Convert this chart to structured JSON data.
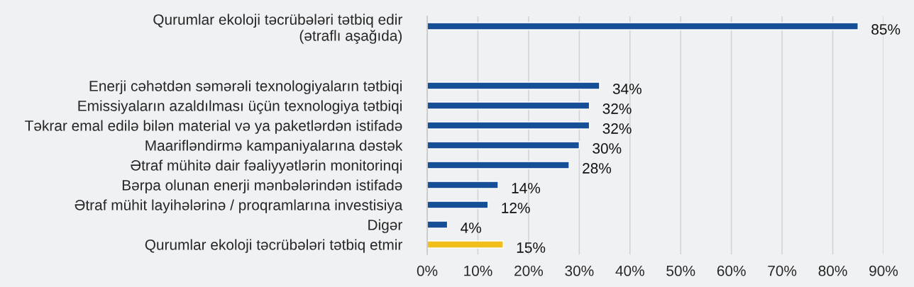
{
  "chart_data": {
    "type": "bar",
    "orientation": "horizontal",
    "categories": [
      "Qurumlar ekoloji təcrübələri tətbiq edir\n(ətraflı aşağıda)",
      null,
      null,
      "Enerji cəhətdən səmərəli texnologiyaların tətbiqi",
      "Emissiyaların azaldılması üçün texnologiya tətbiqi",
      "Təkrar emal edilə bilən material və ya paketlərdən istifadə",
      "Maarifləndirmə kampaniyalarına dəstək",
      "Ətraf mühitə dair fəaliyyətlərin monitorinqi",
      "Bərpa olunan enerji mənbələrindən istifadə",
      "Ətraf mühit layihələrinə / proqramlarına investisiya",
      "Digər",
      "Qurumlar ekoloji təcrübələri tətbiq etmir"
    ],
    "values": [
      85,
      null,
      null,
      34,
      32,
      32,
      30,
      28,
      14,
      12,
      4,
      15
    ],
    "colors": [
      "#154f95",
      "#154f95",
      "#154f95",
      "#154f95",
      "#154f95",
      "#154f95",
      "#154f95",
      "#154f95",
      "#154f95",
      "#154f95",
      "#154f95",
      "#f2bf1a"
    ],
    "value_labels": [
      "85%",
      null,
      null,
      "34%",
      "32%",
      "32%",
      "30%",
      "28%",
      "14%",
      "12%",
      "4%",
      "15%"
    ],
    "xlim": [
      0,
      90
    ],
    "xticks": [
      {
        "value": 0,
        "label": "0%"
      },
      {
        "value": 10,
        "label": "10%"
      },
      {
        "value": 20,
        "label": "20%"
      },
      {
        "value": 30,
        "label": "30%"
      },
      {
        "value": 40,
        "label": "40%"
      },
      {
        "value": 50,
        "label": "50%"
      },
      {
        "value": 60,
        "label": "60%"
      },
      {
        "value": 70,
        "label": "70%"
      },
      {
        "value": 80,
        "label": "80%"
      },
      {
        "value": 90,
        "label": "90%"
      }
    ],
    "grid": "x"
  }
}
